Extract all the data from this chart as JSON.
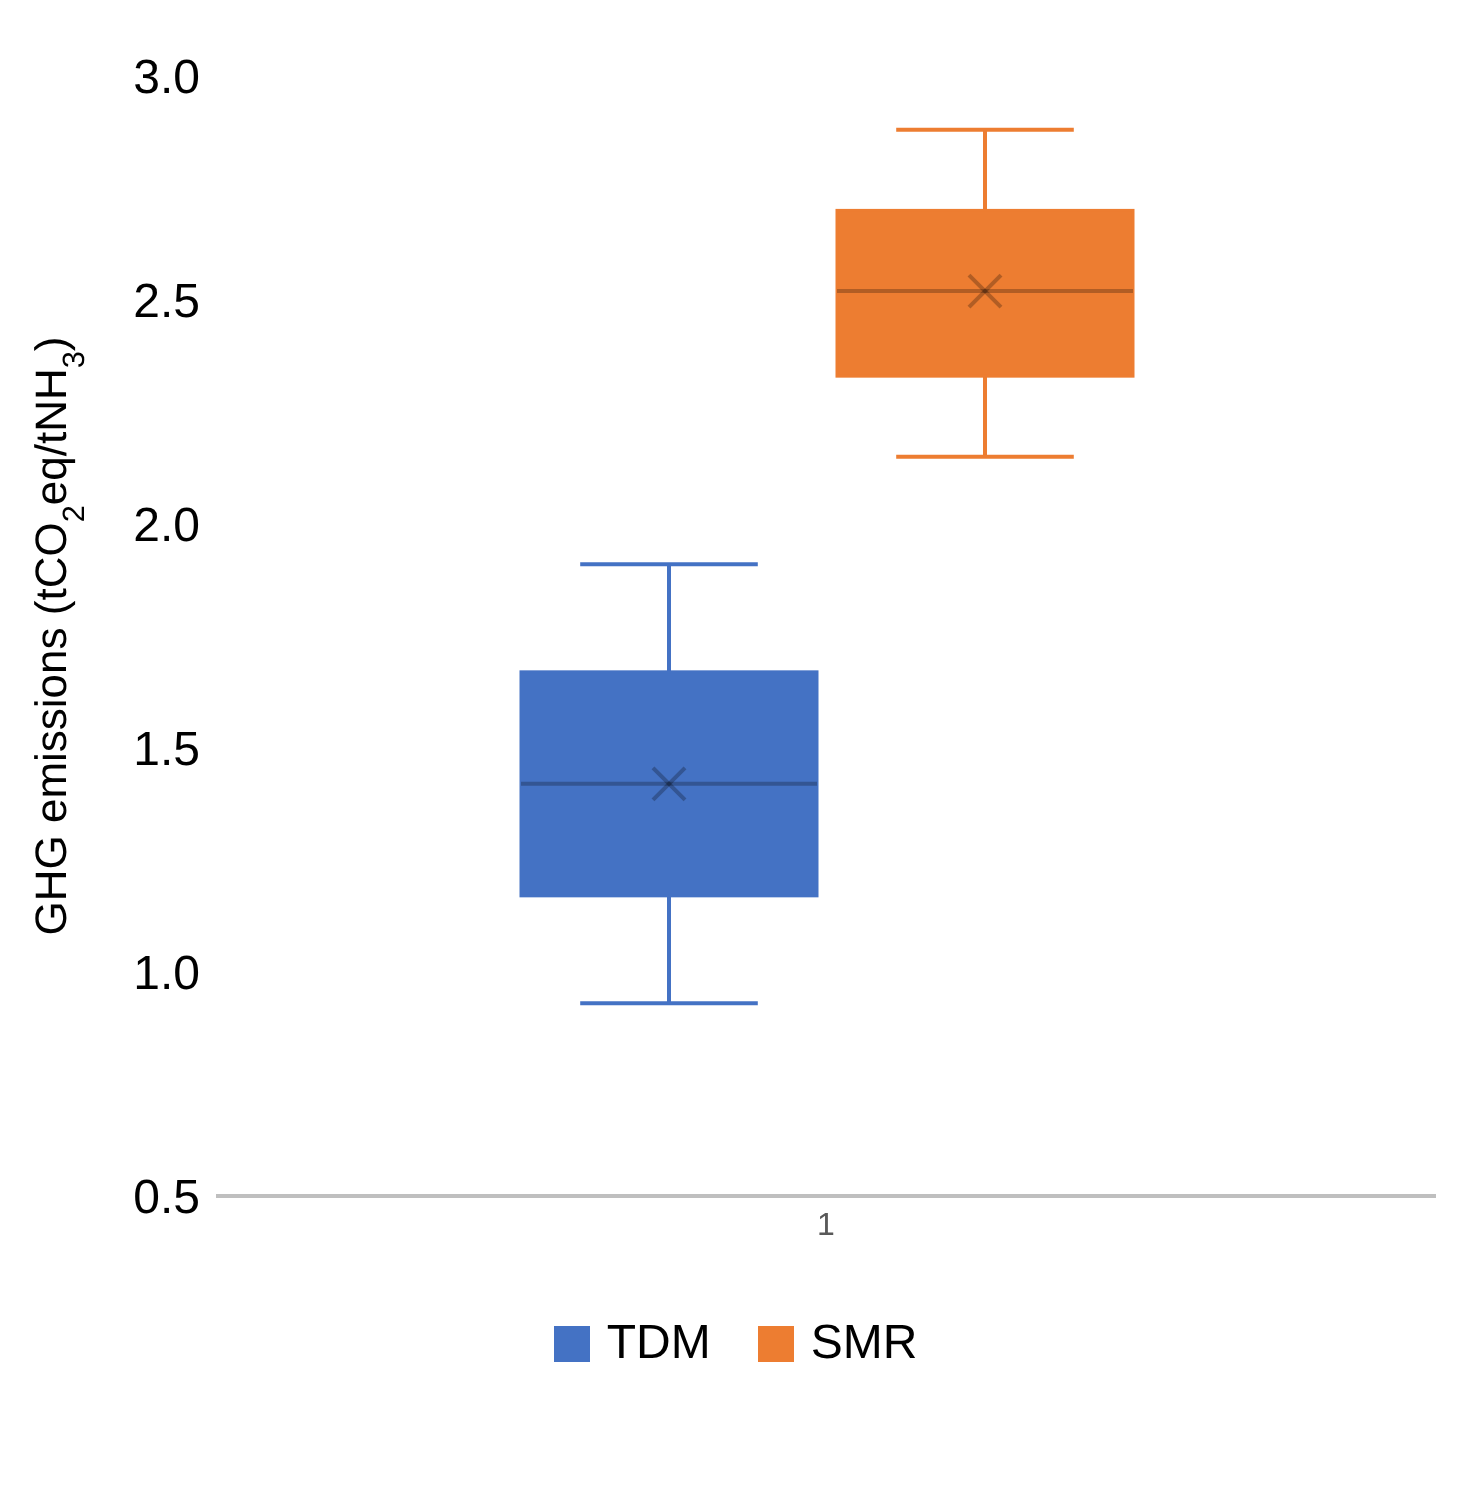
{
  "chart_data": {
    "type": "box",
    "categories": [
      "1"
    ],
    "ylabel": "GHG emissions (tCO$_{2}$eq/tNH$_{3}$)",
    "ylim": [
      0.5,
      3.0
    ],
    "yticks": [
      {
        "value": 0.5,
        "label": "0.5"
      },
      {
        "value": 1,
        "label": "1.0"
      },
      {
        "value": 1.5,
        "label": "1.5"
      },
      {
        "value": 2,
        "label": "2.0"
      },
      {
        "value": 2.5,
        "label": "2.5"
      },
      {
        "value": 3,
        "label": "3.0"
      }
    ],
    "grid": false,
    "legend": "bottom",
    "series": [
      {
        "name": "TDM",
        "color": "#4472c4",
        "boxes": [
          {
            "low": 0.93,
            "q1": 1.17,
            "median": 1.42,
            "q3": 1.67,
            "high": 1.91,
            "mean": 1.42
          }
        ]
      },
      {
        "name": "SMR",
        "color": "#ed7d31",
        "boxes": [
          {
            "low": 2.15,
            "q1": 2.33,
            "median": 2.52,
            "q3": 2.7,
            "high": 2.88,
            "mean": 2.52
          }
        ]
      }
    ]
  }
}
